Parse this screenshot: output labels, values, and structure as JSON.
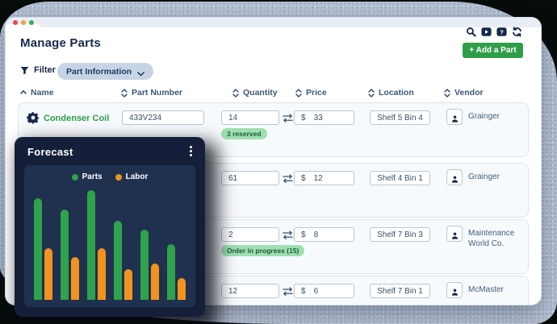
{
  "window": {
    "traffic_lights": [
      "#e5484d",
      "#f0a13a",
      "#39a85b"
    ],
    "toolbar_icons": [
      "search",
      "video",
      "help",
      "sync"
    ],
    "add_part_button": "+ Add a Part"
  },
  "header": {
    "title": "Manage Parts",
    "filter_label": "Filter",
    "filter_pill_label": "Part Information"
  },
  "table": {
    "columns": [
      {
        "label": "Name",
        "sort": "asc"
      },
      {
        "label": "Part Number",
        "sort": "both"
      },
      {
        "label": "Quantity",
        "sort": "both"
      },
      {
        "label": "Price",
        "sort": "both"
      },
      {
        "label": "Location",
        "sort": "both"
      },
      {
        "label": "Vendor",
        "sort": "both"
      }
    ],
    "rows": [
      {
        "name": "Condenser Coil",
        "part_number": "433V234",
        "quantity": "14",
        "quantity_badge": "3 reserved",
        "currency": "$",
        "price": "33",
        "location": "Shelf 5 Bin 4",
        "vendor": "Grainger"
      },
      {
        "quantity": "61",
        "currency": "$",
        "price": "12",
        "location": "Shelf 4 Bin 1",
        "vendor": "Grainger"
      },
      {
        "quantity": "2",
        "quantity_badge": "Order in progress (15)",
        "currency": "$",
        "price": "8",
        "location": "Shelf 7 Bin 3",
        "vendor": "Maintenance World Co."
      },
      {
        "quantity": "12",
        "currency": "$",
        "price": "6",
        "location": "Shelf 7 Bin 1",
        "vendor": "McMaster"
      }
    ]
  },
  "forecast": {
    "title": "Forecast",
    "menu_icon": "kebab-menu"
  },
  "chart_data": {
    "type": "bar",
    "title": "Forecast",
    "x": [
      "1",
      "2",
      "3",
      "4",
      "5",
      "6"
    ],
    "series": [
      {
        "name": "Parts",
        "color": "#2ea24c",
        "values": [
          93,
          82,
          100,
          72,
          64,
          51
        ]
      },
      {
        "name": "Labor",
        "color": "#f0941f",
        "values": [
          47,
          39,
          47,
          28,
          33,
          20
        ]
      }
    ],
    "xlabel": "",
    "ylabel": "",
    "ylim": [
      0,
      100
    ],
    "grid": false,
    "axis_labels_visible": false,
    "legend_position": "top-center",
    "note": "Bars are unlabeled in the UI; values are estimated relative heights (% of tallest bar)"
  },
  "colors": {
    "brand_green": "#2f9e48",
    "navy": "#15294b",
    "badge_bg": "#9fdfb2",
    "badge_text": "#1d5c33",
    "forecast_card": "#151f3a",
    "forecast_panel": "#20304f",
    "backdrop_blob": "#b5c1d4"
  }
}
